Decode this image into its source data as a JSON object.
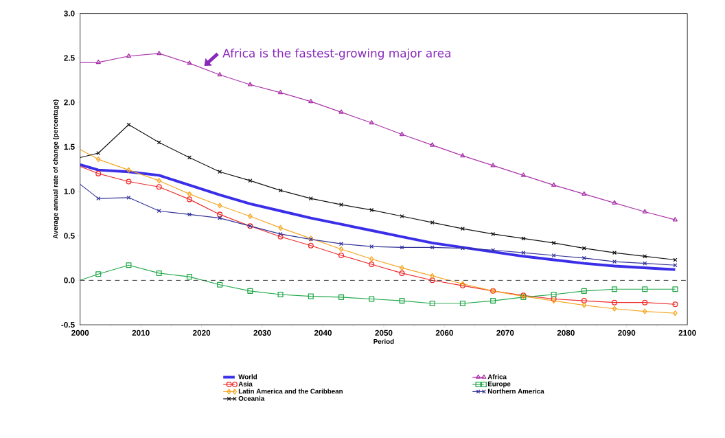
{
  "chart_data": {
    "type": "line",
    "xlabel": "Period",
    "ylabel": "Average annual rate of change (percentage)",
    "x": [
      2000,
      2003,
      2008,
      2013,
      2018,
      2023,
      2028,
      2033,
      2038,
      2043,
      2048,
      2053,
      2058,
      2063,
      2068,
      2073,
      2078,
      2083,
      2088,
      2093,
      2098
    ],
    "xlim": [
      2000,
      2100
    ],
    "xticks": [
      2000,
      2010,
      2020,
      2030,
      2040,
      2050,
      2060,
      2070,
      2080,
      2090,
      2100
    ],
    "ylim": [
      -0.5,
      3.0
    ],
    "yticks": [
      {
        "value": -0.5,
        "label": "-0.5"
      },
      {
        "value": 0,
        "label": "0.0"
      },
      {
        "value": 0.5,
        "label": "0.5"
      },
      {
        "value": 1,
        "label": "1.0"
      },
      {
        "value": 1.5,
        "label": "1.5"
      },
      {
        "value": 2,
        "label": "2.0"
      },
      {
        "value": 2.5,
        "label": "2.5"
      },
      {
        "value": 3,
        "label": "3.0"
      }
    ],
    "legend": "bottom",
    "grid": false,
    "line_style": "solid",
    "ref_lines": [
      {
        "axis": "y",
        "value": 0,
        "color": "#555555",
        "line_style": "dashed"
      }
    ],
    "annotations": [
      {
        "text": "Africa is the fastest-growing major area",
        "x": 2020,
        "y": 2.38
      }
    ],
    "series": [
      {
        "name": "World",
        "color": "#3a2ee8",
        "marker": "none",
        "values": [
          1.3,
          1.24,
          1.22,
          1.18,
          1.07,
          0.96,
          0.86,
          0.78,
          0.7,
          0.63,
          0.56,
          0.49,
          0.42,
          0.37,
          0.32,
          0.27,
          0.23,
          0.19,
          0.16,
          0.14,
          0.12
        ]
      },
      {
        "name": "Africa",
        "color": "#aa33aa",
        "marker": "triangle",
        "values": [
          2.45,
          2.45,
          2.52,
          2.55,
          2.44,
          2.31,
          2.2,
          2.11,
          2.01,
          1.89,
          1.77,
          1.64,
          1.52,
          1.4,
          1.29,
          1.18,
          1.07,
          0.97,
          0.87,
          0.77,
          0.68
        ]
      },
      {
        "name": "Asia",
        "color": "#ee2a2a",
        "marker": "circle",
        "values": [
          1.28,
          1.2,
          1.11,
          1.05,
          0.91,
          0.74,
          0.61,
          0.49,
          0.39,
          0.28,
          0.18,
          0.08,
          0.0,
          -0.06,
          -0.12,
          -0.17,
          -0.21,
          -0.23,
          -0.25,
          -0.25,
          -0.27
        ]
      },
      {
        "name": "Europe",
        "color": "#22a84a",
        "marker": "square",
        "values": [
          0.0,
          0.07,
          0.17,
          0.08,
          0.04,
          -0.05,
          -0.12,
          -0.16,
          -0.18,
          -0.19,
          -0.21,
          -0.23,
          -0.26,
          -0.26,
          -0.23,
          -0.19,
          -0.16,
          -0.12,
          -0.1,
          -0.1,
          -0.1
        ]
      },
      {
        "name": "Latin America and the Caribbean",
        "color": "#f5a623",
        "marker": "diamond",
        "values": [
          1.47,
          1.36,
          1.24,
          1.12,
          0.97,
          0.84,
          0.72,
          0.59,
          0.47,
          0.35,
          0.24,
          0.14,
          0.05,
          -0.04,
          -0.12,
          -0.18,
          -0.23,
          -0.28,
          -0.32,
          -0.35,
          -0.37
        ]
      },
      {
        "name": "Northern America",
        "color": "#333399",
        "marker": "cross",
        "values": [
          1.08,
          0.92,
          0.93,
          0.78,
          0.74,
          0.7,
          0.61,
          0.52,
          0.46,
          0.41,
          0.38,
          0.37,
          0.37,
          0.36,
          0.34,
          0.31,
          0.28,
          0.25,
          0.21,
          0.19,
          0.17
        ]
      },
      {
        "name": "Oceania",
        "color": "#111111",
        "marker": "cross",
        "values": [
          1.38,
          1.43,
          1.75,
          1.55,
          1.38,
          1.22,
          1.12,
          1.01,
          0.92,
          0.85,
          0.79,
          0.72,
          0.65,
          0.58,
          0.52,
          0.47,
          0.42,
          0.36,
          0.31,
          0.27,
          0.23
        ]
      }
    ]
  }
}
